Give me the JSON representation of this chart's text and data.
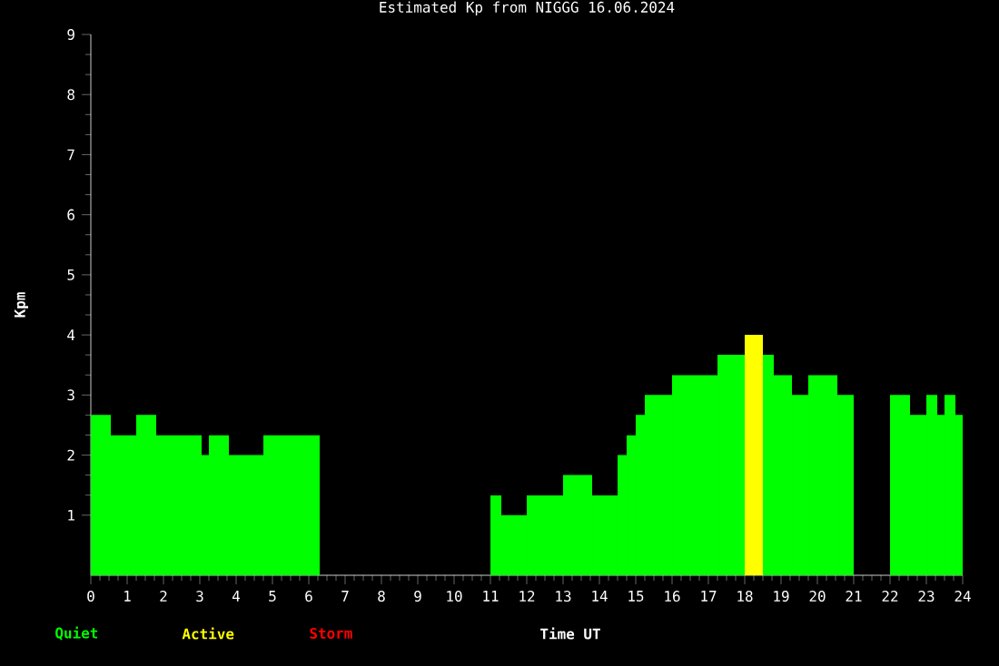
{
  "chart_data": {
    "type": "histogram",
    "title": "Estimated Kp from NIGGG 16.06.2024",
    "xlabel": "Time UT",
    "ylabel": "Kpm",
    "bins": [
      0,
      0.55,
      1.25,
      1.8,
      3.05,
      3.25,
      3.8,
      4.75,
      6.3,
      11,
      11.3,
      12,
      13,
      13.8,
      14.5,
      14.75,
      15,
      15.25,
      16,
      17.25,
      18,
      18.5,
      18.8,
      19.3,
      19.75,
      20.55,
      21,
      22,
      22.55,
      23,
      23.3,
      23.5,
      23.8,
      24
    ],
    "series": [
      {
        "name": "Quiet",
        "color": "#00ff00",
        "values": [
          2.67,
          2.33,
          2.67,
          2.33,
          2.0,
          2.33,
          2.0,
          2.33,
          null,
          1.33,
          1.0,
          1.33,
          1.67,
          1.33,
          2.0,
          2.33,
          2.67,
          3.0,
          3.33,
          3.67,
          null,
          3.67,
          3.33,
          3.0,
          3.33,
          3.0,
          null,
          3.0,
          2.67,
          3.0,
          2.67,
          3.0,
          2.67
        ]
      },
      {
        "name": "Active",
        "color": "#ffff00",
        "values": [
          null,
          null,
          null,
          null,
          null,
          null,
          null,
          null,
          null,
          null,
          null,
          null,
          null,
          null,
          null,
          null,
          null,
          null,
          null,
          null,
          4.0,
          null,
          null,
          null,
          null,
          null,
          null,
          null,
          null,
          null,
          null,
          null,
          null
        ]
      }
    ],
    "annotations": [
      "Storm"
    ],
    "xlim": [
      0,
      24
    ],
    "xticks": [
      0,
      1,
      2,
      3,
      4,
      5,
      6,
      7,
      8,
      9,
      10,
      11,
      12,
      13,
      14,
      15,
      16,
      17,
      18,
      19,
      20,
      21,
      22,
      23,
      24
    ],
    "ylim": [
      0,
      9
    ],
    "yticks": [
      1,
      2,
      3,
      4,
      5,
      6,
      7,
      8,
      9
    ],
    "legend": "bottom left"
  }
}
